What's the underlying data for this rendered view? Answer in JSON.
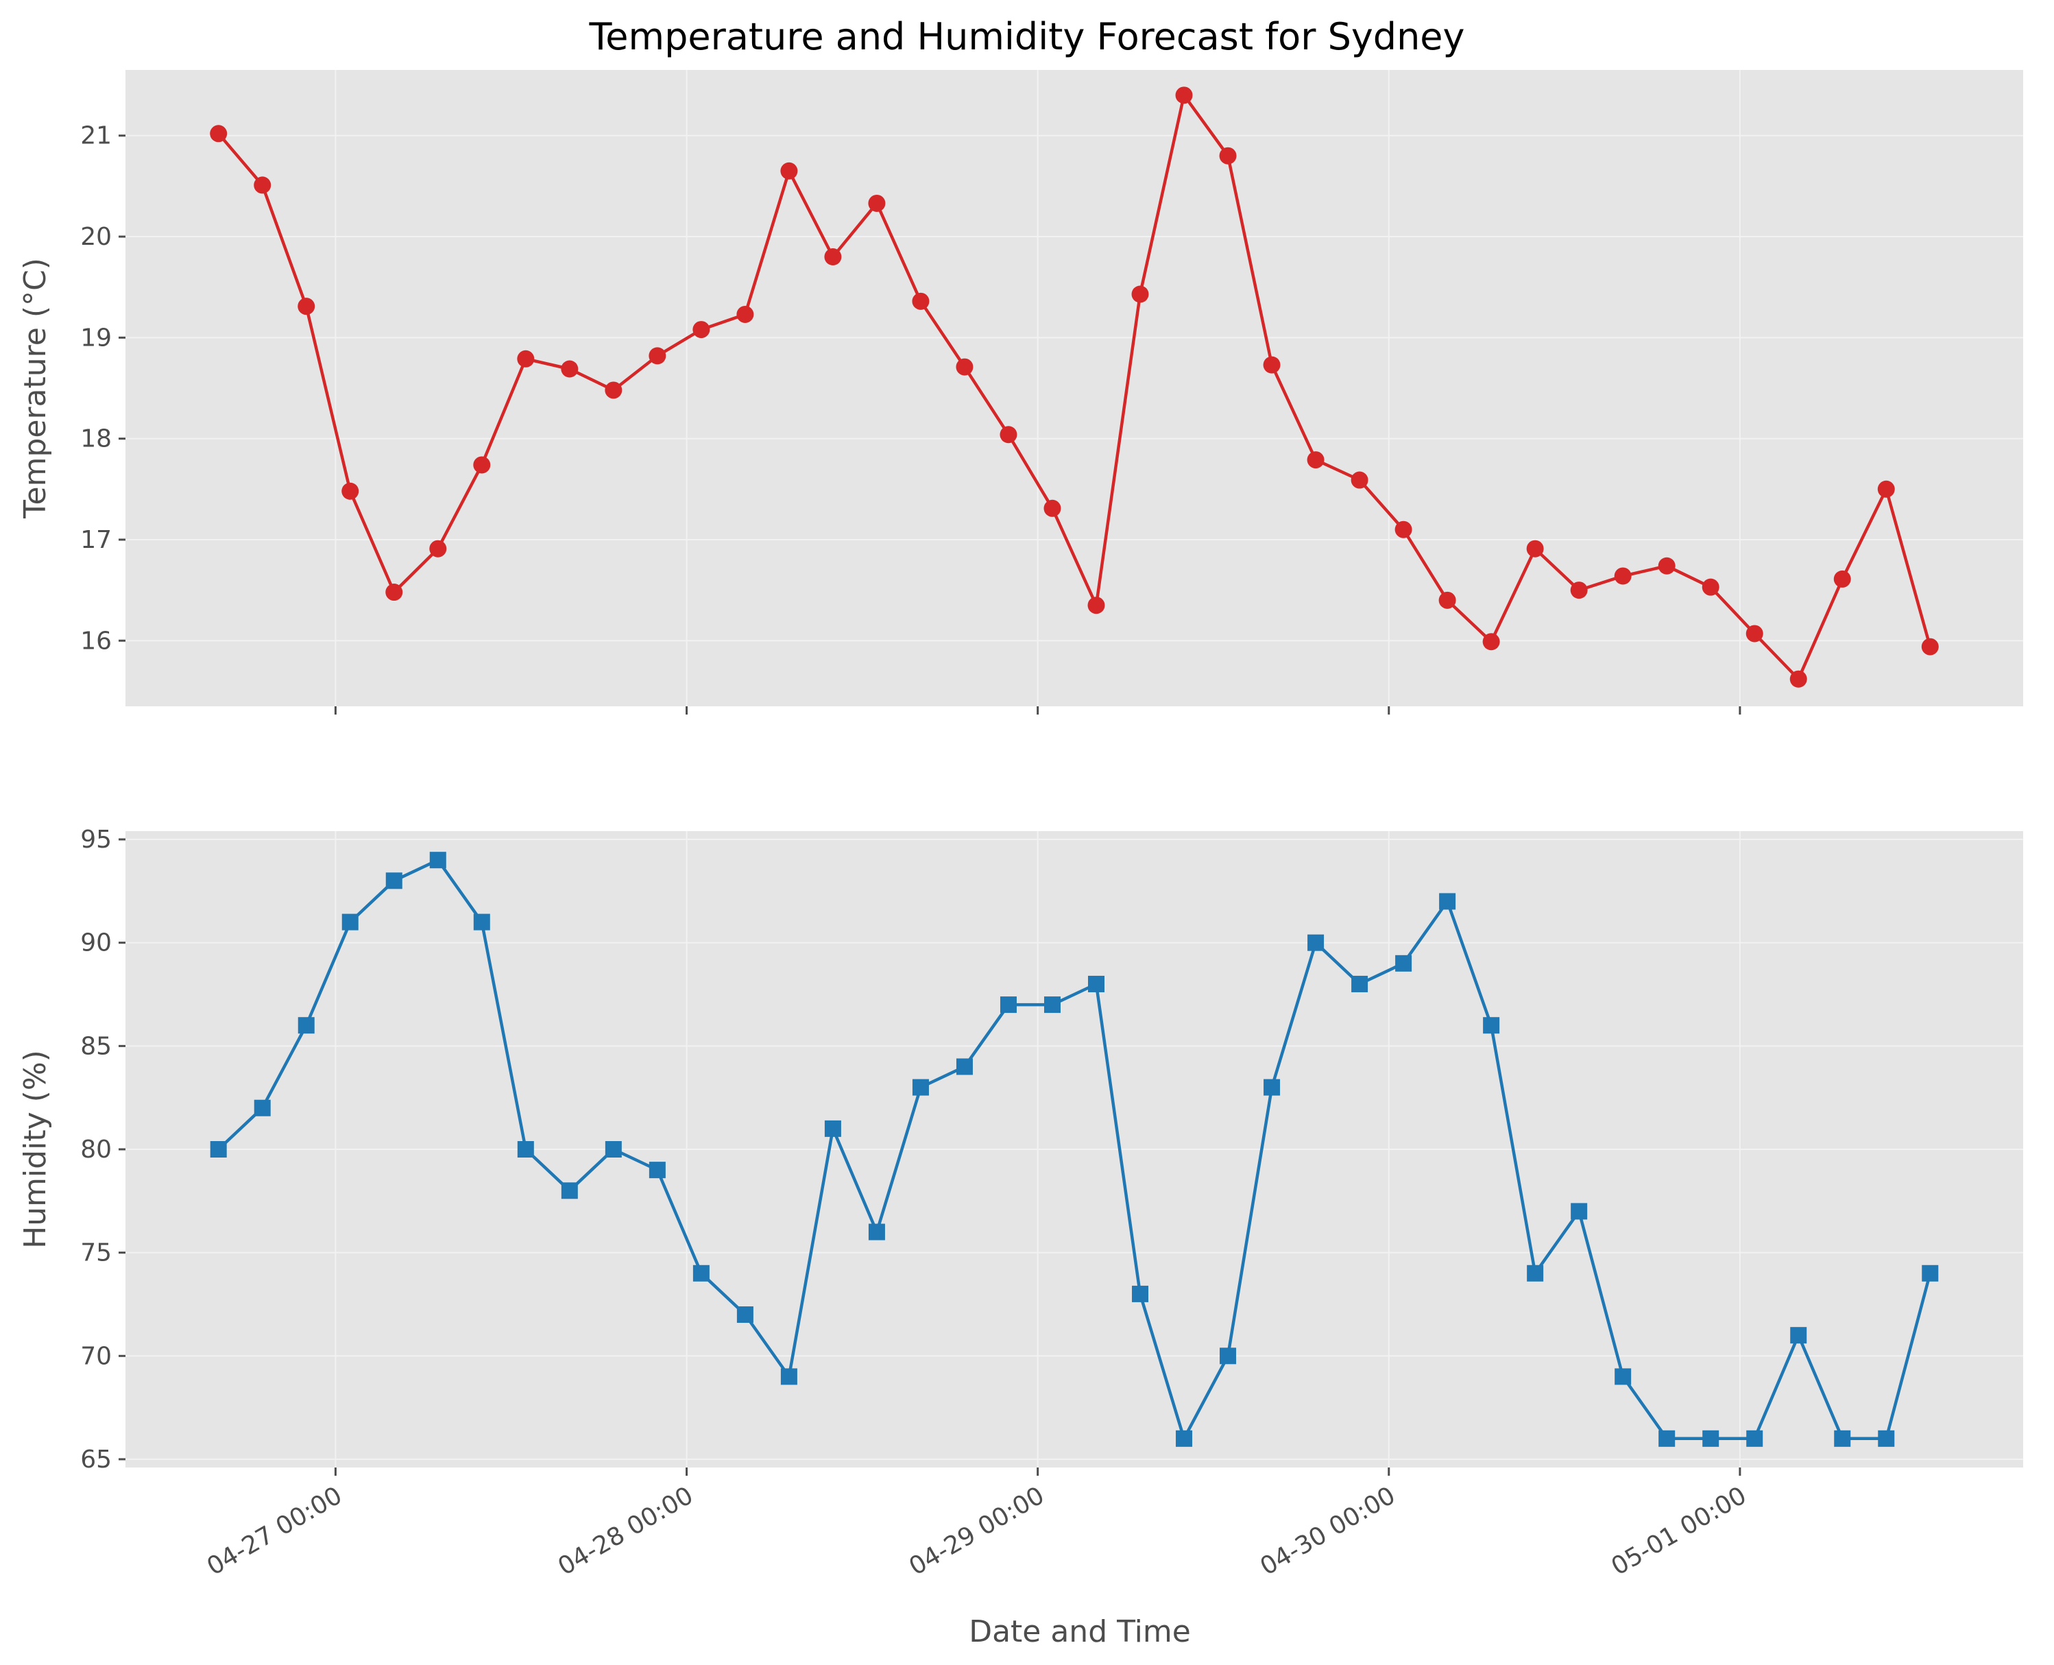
{
  "chart_data": {
    "type": "line",
    "title": "Temperature and Humidity Forecast for Sydney",
    "xlabel": "Date and Time",
    "x": [
      "04-26 16:00",
      "04-26 19:00",
      "04-26 22:00",
      "04-27 01:00",
      "04-27 04:00",
      "04-27 07:00",
      "04-27 10:00",
      "04-27 13:00",
      "04-27 16:00",
      "04-27 19:00",
      "04-27 22:00",
      "04-28 01:00",
      "04-28 04:00",
      "04-28 07:00",
      "04-28 10:00",
      "04-28 13:00",
      "04-28 16:00",
      "04-28 19:00",
      "04-28 22:00",
      "04-29 01:00",
      "04-29 04:00",
      "04-29 07:00",
      "04-29 10:00",
      "04-29 13:00",
      "04-29 16:00",
      "04-29 19:00",
      "04-29 22:00",
      "04-30 01:00",
      "04-30 04:00",
      "04-30 07:00",
      "04-30 10:00",
      "04-30 13:00",
      "04-30 16:00",
      "04-30 19:00",
      "04-30 22:00",
      "05-01 01:00",
      "05-01 04:00",
      "05-01 07:00",
      "05-01 10:00",
      "05-01 13:00"
    ],
    "xticks": [
      "04-27 00:00",
      "04-28 00:00",
      "04-29 00:00",
      "04-30 00:00",
      "05-01 00:00"
    ],
    "panels": [
      {
        "ylabel": "Temperature (°C)",
        "ylim": [
          15.35,
          21.65
        ],
        "yticks": [
          16,
          17,
          18,
          19,
          20,
          21
        ],
        "series": [
          {
            "color": "#d62728",
            "marker": "circle",
            "values": [
              21.02,
              20.51,
              19.31,
              17.48,
              16.48,
              16.91,
              17.74,
              18.79,
              18.69,
              18.48,
              18.82,
              19.08,
              19.23,
              20.65,
              19.8,
              20.33,
              19.36,
              18.71,
              18.04,
              17.31,
              16.35,
              19.43,
              21.4,
              20.8,
              18.73,
              17.79,
              17.59,
              17.1,
              16.4,
              15.99,
              16.91,
              16.5,
              16.64,
              16.74,
              16.53,
              16.07,
              15.62,
              16.61,
              17.5,
              15.94
            ]
          }
        ]
      },
      {
        "ylabel": "Humidity (%)",
        "ylim": [
          64.6,
          95.4
        ],
        "yticks": [
          65,
          70,
          75,
          80,
          85,
          90,
          95
        ],
        "series": [
          {
            "color": "#1f77b4",
            "marker": "square",
            "values": [
              80,
              82,
              86,
              91,
              93,
              94,
              91,
              80,
              78,
              80,
              79,
              74,
              72,
              69,
              81,
              76,
              83,
              84,
              87,
              87,
              88,
              73,
              66,
              70,
              83,
              90,
              88,
              89,
              92,
              86,
              74,
              77,
              69,
              66,
              66,
              66,
              71,
              66,
              66,
              74
            ]
          }
        ]
      }
    ],
    "grid": true,
    "legend": "none"
  }
}
